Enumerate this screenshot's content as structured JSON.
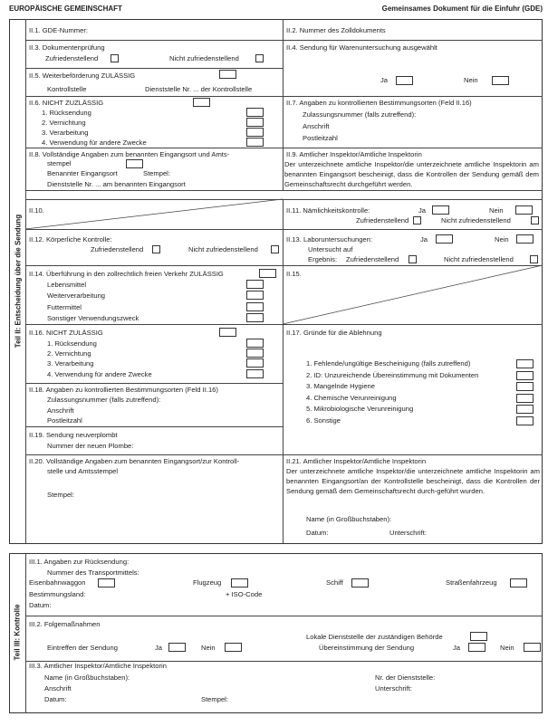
{
  "header": {
    "left": "EUROPÄISCHE GEMEINSCHAFT",
    "right": "Gemeinsames Dokument für die Einfuhr (GDE)"
  },
  "part2": {
    "label": "Teil II: Entscheidung über die Sendung",
    "f1": "II.1. GDE-Nummer:",
    "f2": "II.2. Nummer des Zolldokuments",
    "f3": {
      "title": "II.3. Dokumentenprüfung",
      "ok": "Zufriedenstellend",
      "nok": "Nicht zufriedenstellend"
    },
    "f4": {
      "title": "II.4. Sendung für Warenuntersuchung ausgewählt",
      "yes": "Ja",
      "no": "Nein"
    },
    "f5": {
      "title": "II.5. Weiterbeförderung ZULÄSSIG",
      "a": "Kontrollstelle",
      "b": "Dienststelle Nr. ... der Kontrollstelle"
    },
    "f6": {
      "title": "II.6. NICHT ZUZLÄSSIG",
      "items": [
        "1. Rücksendung",
        "2. Vernichtung",
        "3. Verarbeitung",
        "4. Verwendung für andere Zwecke"
      ]
    },
    "f7": {
      "title": "II.7. Angaben zu kontrollierten Bestimmungsorten (Feld II.16)",
      "a": "Zulassungsnummer (falls zutreffend):",
      "b": "Anschrift",
      "c": "Postleitzahl"
    },
    "f8": {
      "title": "II.8. Vollständige Angaben zum benannten Eingangsort und Amts-",
      "title2": "stempel",
      "a": "Benannter Eingangsort",
      "b": "Stempel:",
      "c": "Dienststelle Nr. ... am benannten Eingangsort"
    },
    "f9": {
      "title": "II.9. Amtlicher Inspektor/Amtliche Inspektorin",
      "text": "Der unterzeichnete amtliche Inspektor/die unterzeichnete amtliche Inspektorin am benannten Eingangsort bescheinigt, dass die Kontrollen der Sendung gemäß dem Gemeinschaftsrecht durchgeführt werden."
    },
    "f10": "II.10.",
    "f11": {
      "title": "II.11. Nämlichkeitskontrolle:",
      "yes": "Ja",
      "no": "Nein",
      "ok": "Zufriedenstellend",
      "nok": "Nicht zufriedenstellend"
    },
    "f12": {
      "title": "II.12. Körperliche Kontrolle:",
      "ok": "Zufriedenstellend",
      "nok": "Nicht zufriedenstellend"
    },
    "f13": {
      "title": "II.13. Laboruntersuchungen:",
      "yes": "Ja",
      "no": "Nein",
      "a": "Untersucht auf",
      "b": "Ergebnis:",
      "ok": "Zufriedenstellend",
      "nok": "Nicht zufriedenstellend"
    },
    "f14": {
      "title": "II.14. Überführung in den zollrechtlich freien Verkehr ZULÄSSIG",
      "items": [
        "Lebensmittel",
        "Weiterverarbeitung",
        "Futtermittel",
        "Sonstiger Verwendungszweck"
      ]
    },
    "f15": "II.15.",
    "f16": {
      "title": "II.16. NICHT ZULÄSSIG",
      "items": [
        "1. Rücksendung",
        "2. Vernichtung",
        "3. Verarbeitung",
        "4. Verwendung für andere Zwecke"
      ]
    },
    "f17": {
      "title": "II.17. Gründe für die Ablehnung",
      "items": [
        "1. Fehlende/ungültige Bescheinigung (falls zutreffend)",
        "2. ID: Unzureichende Übereinstimmung mit Dokumenten",
        "3. Mangelnde Hygiene",
        "4. Chemische Verunreinigung",
        "5. Mikrobiologische Verunreinigung",
        "6. Sonstige"
      ]
    },
    "f18": {
      "title": "II.18. Angaben zu kontrollierten Bestimmungsorten (Feld II.16)",
      "a": "Zulassungsnummer (falls zutreffend):",
      "b": "Anschrift",
      "c": "Postleitzahl"
    },
    "f19": {
      "title": "II.19. Sendung neuverplombt",
      "a": "Nummer der neuen Plombe:"
    },
    "f20": {
      "title": "II.20. Vollständige Angaben zum benannten Eingangsort/zur Kontroll-",
      "title2": "stelle und Amtsstempel",
      "a": "Stempel:"
    },
    "f21": {
      "title": "II.21. Amtlicher Inspektor/Amtliche Inspektorin",
      "text": "Der unterzeichnete amtliche Inspektor/die unterzeichnete amtliche Inspektorin am benannten Eingangsort/an der Kontrollstelle bescheinigt, dass die Kontrollen der Sendung gemäß dem Gemeinschaftsrecht durch-geführt wurden.",
      "name": "Name (in Großbuchstaben):",
      "date": "Datum:",
      "sign": "Unterschrift:"
    }
  },
  "part3": {
    "label": "Teil III: Kontrolle",
    "f1": {
      "title": "III.1. Angaben zur Rücksendung:",
      "a": "Nummer des Transportmittels:",
      "rail": "Eisenbahnwaggon",
      "plane": "Flugzeug",
      "ship": "Schiff",
      "road": "Straßenfahrzeug",
      "country": "Bestimmungsland:",
      "iso": "+ ISO-Code",
      "date": "Datum:"
    },
    "f2": {
      "title": "III.2. Folgemaßnahmen",
      "local": "Lokale Dienststelle der zuständigen Behörde",
      "arrival": "Eintreffen der Sendung",
      "match": "Übereinstimmung der Sendung",
      "yes": "Ja",
      "no": "Nein"
    },
    "f3": {
      "title": "III.3. Amtlicher Inspektor/Amtliche Inspektorin",
      "name": "Name (in Großbuchstaben):",
      "office": "Nr. der Dienststelle:",
      "address": "Anschrift",
      "sign": "Unterschrift:",
      "date": "Datum:",
      "stamp": "Stempel:"
    }
  }
}
